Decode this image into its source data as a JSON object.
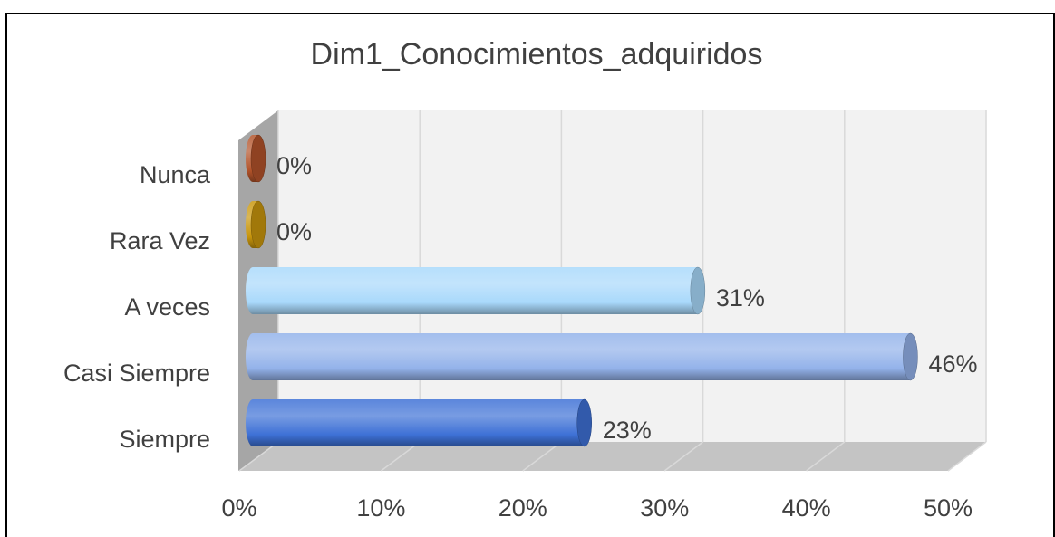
{
  "chart_data": {
    "type": "bar3d",
    "orientation": "horizontal",
    "title": "Dim1_Conocimientos_adquiridos",
    "categories": [
      "Nunca",
      "Rara Vez",
      "A veces",
      "Casi Siempre",
      "Siempre"
    ],
    "values": [
      0,
      0,
      31,
      46,
      23
    ],
    "value_labels": [
      "0%",
      "0%",
      "31%",
      "46%",
      "23%"
    ],
    "colors": [
      "#b3532a",
      "#c9960c",
      "#a9d9fb",
      "#93b2ea",
      "#3e71d6"
    ],
    "xlim": [
      0,
      50
    ],
    "xticks": [
      {
        "value": 0,
        "label": "0%"
      },
      {
        "value": 10,
        "label": "10%"
      },
      {
        "value": 20,
        "label": "20%"
      },
      {
        "value": 30,
        "label": "30%"
      },
      {
        "value": 40,
        "label": "40%"
      },
      {
        "value": 50,
        "label": "50%"
      }
    ],
    "grid": true
  }
}
